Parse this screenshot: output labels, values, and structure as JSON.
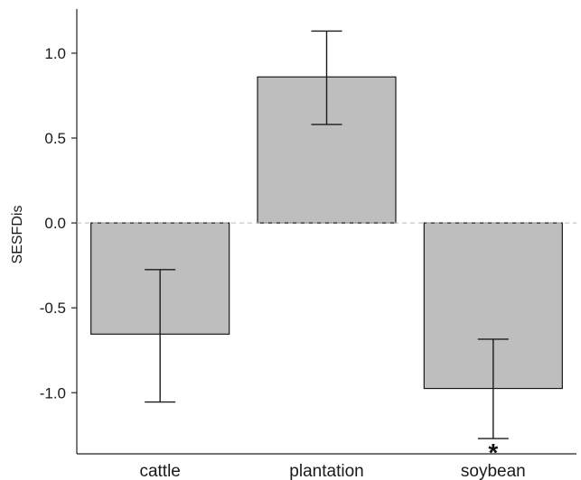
{
  "chart_data": {
    "type": "bar",
    "title": "",
    "xlabel": "",
    "ylabel": "SESFDis",
    "categories": [
      "cattle",
      "plantation",
      "soybean"
    ],
    "values": [
      -0.655,
      0.86,
      -0.975
    ],
    "error_low": [
      -1.055,
      0.58,
      -1.27
    ],
    "error_high": [
      -0.275,
      1.13,
      -0.685
    ],
    "annotations": [
      "",
      "",
      "*"
    ],
    "ylim": [
      -1.36,
      1.26
    ],
    "yticks": [
      1.0,
      0.5,
      0.0,
      -0.5,
      -1.0
    ],
    "ytick_labels": [
      "1.0",
      "0.5",
      "0.0",
      "-0.5",
      "-1.0"
    ],
    "reference_line": 0,
    "grid": false,
    "bar_color": "#bebebe",
    "bar_edge_color": "#1a1a1a",
    "reference_line_color": "#bbbbbb"
  }
}
